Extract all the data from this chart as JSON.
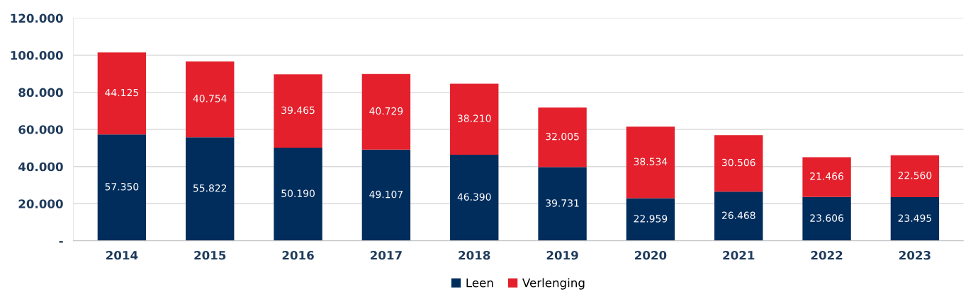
{
  "chart_data": {
    "type": "bar",
    "stacked": true,
    "categories": [
      "2014",
      "2015",
      "2016",
      "2017",
      "2018",
      "2019",
      "2020",
      "2021",
      "2022",
      "2023"
    ],
    "series": [
      {
        "name": "Leen",
        "color": "#002d5c",
        "values": [
          57350,
          55822,
          50190,
          49107,
          46390,
          39731,
          22959,
          26468,
          23606,
          23495
        ],
        "value_labels": [
          "57.350",
          "55.822",
          "50.190",
          "49.107",
          "46.390",
          "39.731",
          "22.959",
          "26.468",
          "23.606",
          "23.495"
        ]
      },
      {
        "name": "Verlenging",
        "color": "#e3202c",
        "values": [
          44125,
          40754,
          39465,
          40729,
          38210,
          32005,
          38534,
          30506,
          21466,
          22560
        ],
        "value_labels": [
          "44.125",
          "40.754",
          "39.465",
          "40.729",
          "38.210",
          "32.005",
          "38.534",
          "30.506",
          "21.466",
          "22.560"
        ]
      }
    ],
    "ylim": [
      0,
      120000
    ],
    "yticks": [
      {
        "value": 0,
        "label": "-"
      },
      {
        "value": 20000,
        "label": "20.000"
      },
      {
        "value": 40000,
        "label": "40.000"
      },
      {
        "value": 60000,
        "label": "60.000"
      },
      {
        "value": 80000,
        "label": "80.000"
      },
      {
        "value": 100000,
        "label": "100.000"
      },
      {
        "value": 120000,
        "label": "120.000"
      }
    ],
    "grid": "y",
    "legend": "bottom"
  }
}
